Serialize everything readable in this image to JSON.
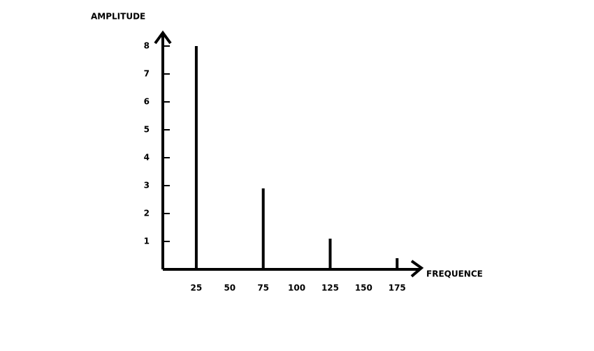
{
  "chart_data": {
    "type": "stem",
    "x_label": "FREQUENCE",
    "y_label": "AMPLITUDE",
    "x": [
      25,
      75,
      125,
      175
    ],
    "values": [
      8,
      2.9,
      1.1,
      0.4
    ],
    "color": "#000000",
    "xlim": [
      0,
      190
    ],
    "xticks": [
      25,
      50,
      75,
      100,
      125,
      150,
      175
    ],
    "ylim": [
      0,
      8
    ],
    "yticks": [
      1,
      2,
      3,
      4,
      5,
      6,
      7,
      8
    ]
  }
}
